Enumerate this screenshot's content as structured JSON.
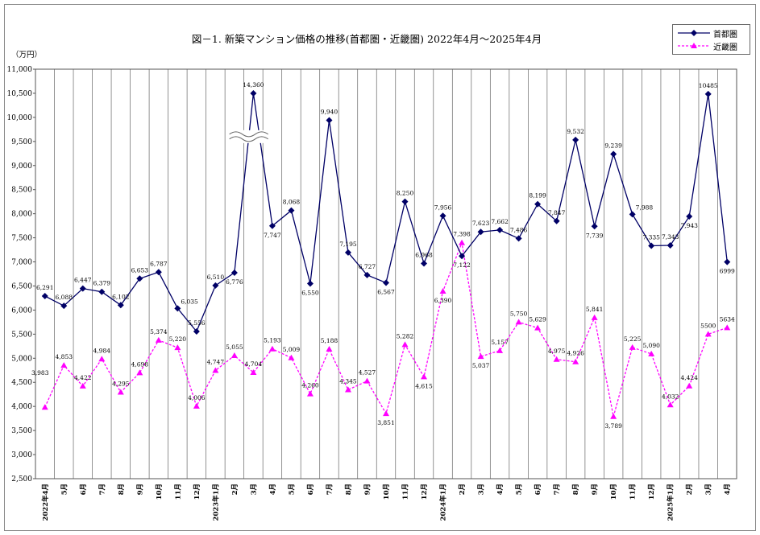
{
  "chart_data": {
    "type": "line",
    "title": "図－1. 新築マンション価格の推移(首都圏・近畿圏) 2022年4月～2025年4月",
    "unit_label": "（万円）",
    "categories": [
      "2022年4月",
      "5月",
      "6月",
      "7月",
      "8月",
      "9月",
      "10月",
      "11月",
      "12月",
      "2023年1月",
      "2月",
      "3月",
      "4月",
      "5月",
      "6月",
      "7月",
      "8月",
      "9月",
      "10月",
      "11月",
      "12月",
      "2024年1月",
      "2月",
      "3月",
      "4月",
      "5月",
      "6月",
      "7月",
      "8月",
      "9月",
      "10月",
      "11月",
      "12月",
      "2025年1月",
      "2月",
      "3月",
      "4月"
    ],
    "ylim": [
      2500,
      11000
    ],
    "yticks": [
      "2,500",
      "3,000",
      "3,500",
      "4,000",
      "4,500",
      "5,000",
      "5,500",
      "6,000",
      "6,500",
      "7,000",
      "7,500",
      "8,000",
      "8,500",
      "9,000",
      "9,500",
      "10,000",
      "10,500",
      "11,000"
    ],
    "axis_break_after_category": "3月",
    "series": [
      {
        "name": "首都圏",
        "color": "#000066",
        "marker": "diamond",
        "line": "solid",
        "values": [
          6291,
          6088,
          6447,
          6379,
          6102,
          6653,
          6787,
          6035,
          5556,
          6510,
          6776,
          14360,
          7747,
          8068,
          6550,
          9940,
          7195,
          6727,
          6567,
          8250,
          6968,
          7956,
          7122,
          7623,
          7662,
          7486,
          8199,
          7847,
          9532,
          7739,
          9239,
          7988,
          7335,
          7343,
          7943,
          10485,
          6999
        ],
        "plotted_values": [
          6291,
          6088,
          6447,
          6379,
          6102,
          6653,
          6787,
          6035,
          5556,
          6510,
          6776,
          10500,
          7747,
          8068,
          6550,
          9940,
          7195,
          6727,
          6567,
          8250,
          6968,
          7956,
          7122,
          7623,
          7662,
          7486,
          8199,
          7847,
          9532,
          7739,
          9239,
          7988,
          7335,
          7343,
          7943,
          10485,
          6999
        ],
        "labels": [
          "6,291",
          "6,088",
          "6,447",
          "6,379",
          "6,102",
          "6,653",
          "6,787",
          "6,035",
          "5,556",
          "6,510",
          "6,776",
          "14,360",
          "7,747",
          "8,068",
          "6,550",
          "9,940",
          "7,195",
          "6,727",
          "6,567",
          "8,250",
          "6,968",
          "7,956",
          "7,122",
          "7,623",
          "7,662",
          "7,486",
          "8,199",
          "7,847",
          "9,532",
          "7,739",
          "9,239",
          "7,988",
          "7,335",
          "7,343",
          "7,943",
          "10485",
          "6999"
        ],
        "label_pos": [
          "a",
          "a",
          "a",
          "a",
          "a",
          "a",
          "a",
          "ar",
          "a",
          "a",
          "b",
          "a",
          "b",
          "a",
          "b",
          "a",
          "a",
          "a",
          "b",
          "a",
          "a",
          "a",
          "b",
          "a",
          "a",
          "a",
          "a",
          "a",
          "a",
          "b",
          "a",
          "ar",
          "a",
          "a",
          "b",
          "a",
          "b"
        ]
      },
      {
        "name": "近畿圏",
        "color": "#ff00ff",
        "marker": "triangle",
        "line": "dashed",
        "values": [
          3983,
          4853,
          4422,
          4984,
          4295,
          4698,
          5374,
          5220,
          4006,
          4747,
          5055,
          4704,
          5193,
          5009,
          4260,
          5188,
          4345,
          4527,
          3851,
          5282,
          4615,
          6390,
          7398,
          5037,
          5157,
          5750,
          5629,
          4975,
          4926,
          5841,
          3789,
          5225,
          5090,
          4032,
          4424,
          5500,
          5634
        ],
        "labels": [
          "3,983",
          "4,853",
          "4,422",
          "4,984",
          "4,295",
          "4,698",
          "5,374",
          "5,220",
          "4,006",
          "4,747",
          "5,055",
          "4,704",
          "5,193",
          "5,009",
          "4,260",
          "5,188",
          "4,345",
          "4,527",
          "3,851",
          "5,282",
          "4,615",
          "6,390",
          "7,398",
          "5,037",
          "5,157",
          "5,750",
          "5,629",
          "4,975",
          "4,926",
          "5,841",
          "3,789",
          "5,225",
          "5,090",
          "4,032",
          "4,424",
          "5500",
          "5634"
        ],
        "label_pos": [
          "l",
          "a",
          "a",
          "a",
          "a",
          "a",
          "a",
          "a",
          "a",
          "a",
          "a",
          "a",
          "a",
          "a",
          "a",
          "a",
          "a",
          "a",
          "b",
          "a",
          "b",
          "b",
          "a",
          "b",
          "a",
          "a",
          "a",
          "a",
          "a",
          "a",
          "b",
          "a",
          "a",
          "a",
          "a",
          "a",
          "a"
        ]
      }
    ],
    "legend_position": "top-right",
    "grid": "vertical"
  }
}
